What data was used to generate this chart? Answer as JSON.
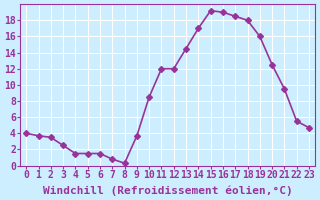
{
  "x": [
    0,
    1,
    2,
    3,
    4,
    5,
    6,
    7,
    8,
    9,
    10,
    11,
    12,
    13,
    14,
    15,
    16,
    17,
    18,
    19,
    20,
    21,
    22,
    23
  ],
  "y": [
    4,
    3.7,
    3.5,
    2.5,
    1.5,
    1.5,
    1.5,
    0.8,
    0.3,
    3.7,
    8.5,
    12,
    12,
    14.5,
    17,
    19.2,
    19,
    18.5,
    18,
    16,
    12.5,
    9.5,
    5.5,
    4.7
  ],
  "line_color": "#993399",
  "marker": "D",
  "marker_size": 3,
  "bg_color": "#cceeff",
  "grid_color": "#ffffff",
  "xlabel": "Windchill (Refroidissement éolien,°C)",
  "xlabel_color": "#993399",
  "xlabel_fontsize": 8,
  "tick_color": "#993399",
  "tick_fontsize": 7,
  "xlim": [
    -0.5,
    23.5
  ],
  "ylim": [
    0,
    20
  ],
  "yticks": [
    0,
    2,
    4,
    6,
    8,
    10,
    12,
    14,
    16,
    18
  ],
  "xticks": [
    0,
    1,
    2,
    3,
    4,
    5,
    6,
    7,
    8,
    9,
    10,
    11,
    12,
    13,
    14,
    15,
    16,
    17,
    18,
    19,
    20,
    21,
    22,
    23
  ]
}
